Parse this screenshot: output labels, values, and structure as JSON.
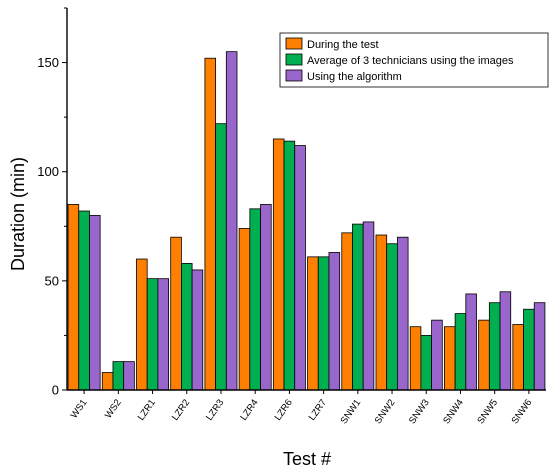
{
  "chart_data": {
    "type": "bar",
    "xlabel": "Test #",
    "ylabel": "Duration (min)",
    "ylim": [
      0,
      175
    ],
    "yticks": [
      0,
      50,
      100,
      150
    ],
    "grid": false,
    "legend_position": "top-right",
    "categories": [
      "WS1",
      "WS2",
      "LZR1",
      "LZR2",
      "LZR3",
      "LZR4",
      "LZR6",
      "LZR7",
      "SNW1",
      "SNW2",
      "SNW3",
      "SNW4",
      "SNW5",
      "SNW6"
    ],
    "series": [
      {
        "name": "During the test",
        "color": "#ff8000",
        "values": [
          85,
          8,
          60,
          70,
          152,
          74,
          115,
          61,
          72,
          71,
          29,
          29,
          32,
          30
        ]
      },
      {
        "name": "Average of 3 technicians using the images",
        "color": "#00b050",
        "values": [
          82,
          13,
          51,
          58,
          122,
          83,
          114,
          61,
          76,
          67,
          25,
          35,
          40,
          37
        ]
      },
      {
        "name": "Using the algorithm",
        "color": "#9966cc",
        "values": [
          80,
          13,
          51,
          55,
          155,
          85,
          112,
          63,
          77,
          70,
          32,
          44,
          45,
          40
        ]
      }
    ]
  }
}
